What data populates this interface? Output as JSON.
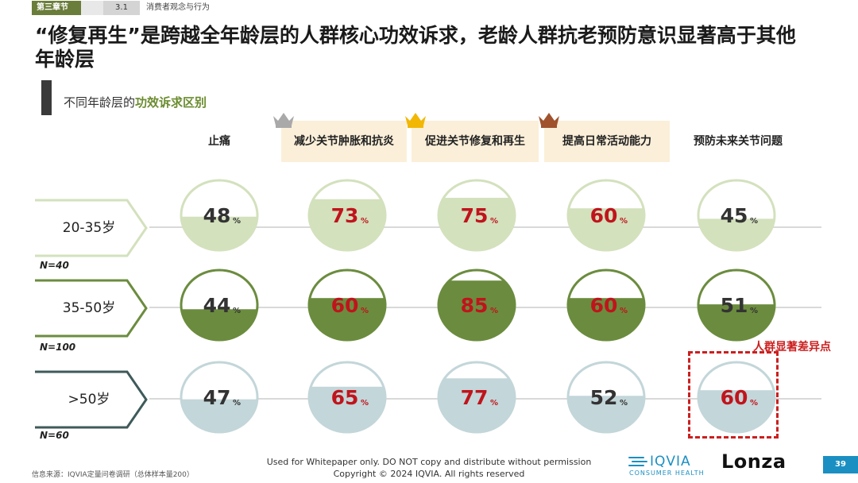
{
  "header": {
    "chapter_tag": "第三章节",
    "section_number": "3.1",
    "section_name": "消费者观念与行为"
  },
  "page_title": "“修复再生”是跨越全年龄层的人群核心功效诉求，老龄人群抗老预防意识显著高于其他年龄层",
  "subtitle": {
    "prefix": "不同年龄层的",
    "highlight": "功效诉求区别"
  },
  "crown_colors": [
    "#a9a9a9",
    "#f2b705",
    "#a0522d"
  ],
  "chart_data": {
    "type": "table",
    "value_suffix": "%",
    "categories": [
      "止痛",
      "减少关节肿胀和抗炎",
      "促进关节修复和再生",
      "提高日常活动能力",
      "预防未来关节问题"
    ],
    "highlighted_categories": [
      false,
      true,
      true,
      true,
      false
    ],
    "series": [
      {
        "name": "20-35岁",
        "n": "N=40",
        "fill": "#d3e1bd",
        "values": [
          48,
          73,
          75,
          60,
          45
        ]
      },
      {
        "name": "35-50岁",
        "n": "N=100",
        "fill": "#6b8c3e",
        "values": [
          44,
          60,
          85,
          60,
          51
        ]
      },
      {
        "name": ">50岁",
        "n": "N=60",
        "fill": "#c3d6d9",
        "values": [
          47,
          65,
          77,
          52,
          60
        ]
      }
    ],
    "highlight_value_color": "#c0141c",
    "normal_value_color": "#333333",
    "highlighted_cells": [
      [
        false,
        true,
        true,
        true,
        false
      ],
      [
        false,
        true,
        true,
        true,
        false
      ],
      [
        false,
        true,
        true,
        false,
        true
      ]
    ],
    "annotation": "人群显著差异点"
  },
  "footer": {
    "source": "信息来源：IQVIA定量问卷调研（总体样本量200）",
    "line1": "Used for Whitepaper only. DO NOT copy and distribute without permission",
    "line2": "Copyright © 2024 IQVIA. All rights reserved",
    "iqvia_name": "IQVIA",
    "iqvia_sub": "CONSUMER HEALTH",
    "lonza": "Lonza",
    "page_number": "39"
  }
}
